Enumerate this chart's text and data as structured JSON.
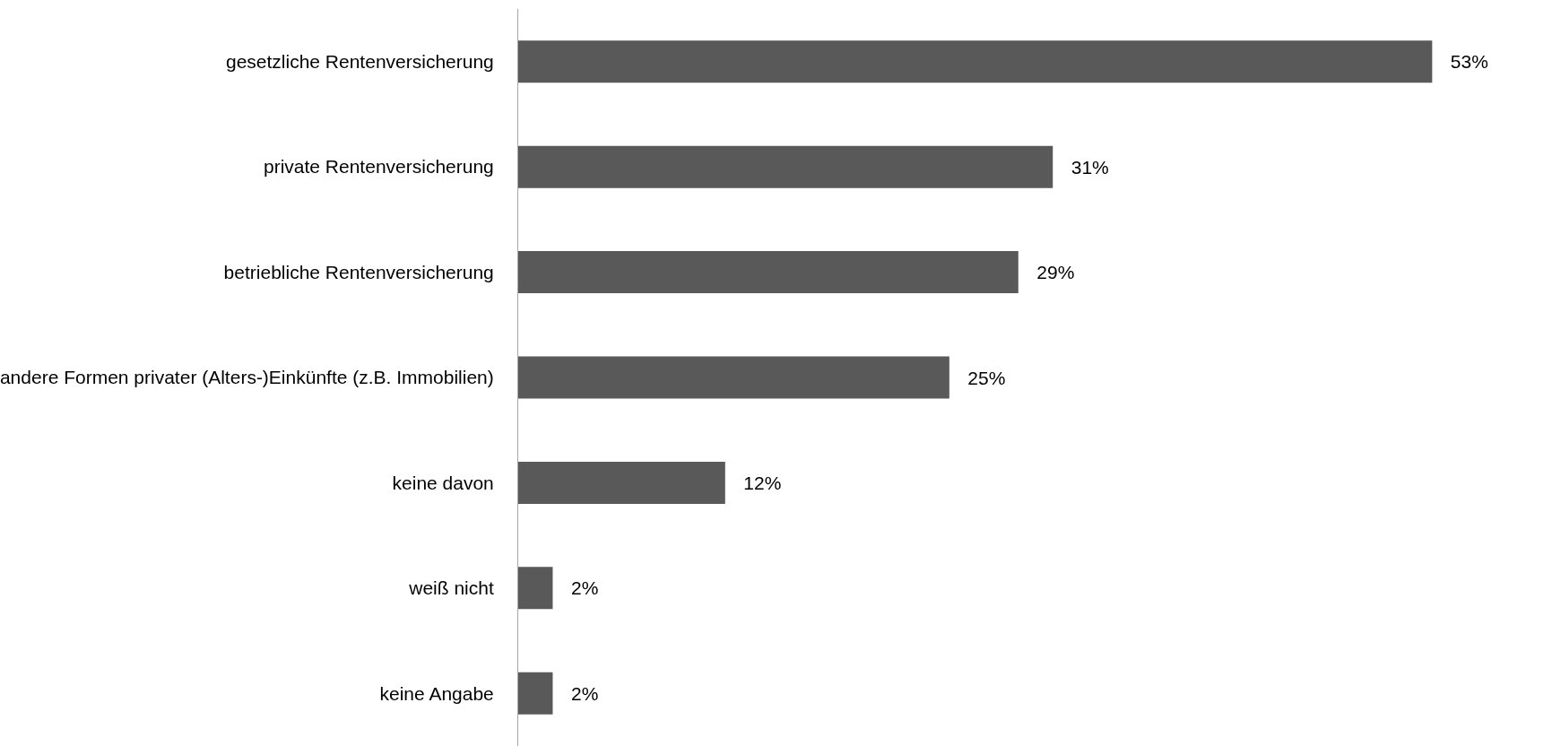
{
  "chart_data": {
    "type": "bar",
    "orientation": "horizontal",
    "categories": [
      "gesetzliche Rentenversicherung",
      "private Rentenversicherung",
      "betriebliche Rentenversicherung",
      "andere Formen privater (Alters-)Einkünfte (z.B. Immobilien)",
      "keine davon",
      "weiß nicht",
      "keine Angabe"
    ],
    "values": [
      53,
      31,
      29,
      25,
      12,
      2,
      2
    ],
    "value_labels": [
      "53%",
      "31%",
      "29%",
      "25%",
      "12%",
      "2%",
      "2%"
    ],
    "color": "#595959"
  }
}
